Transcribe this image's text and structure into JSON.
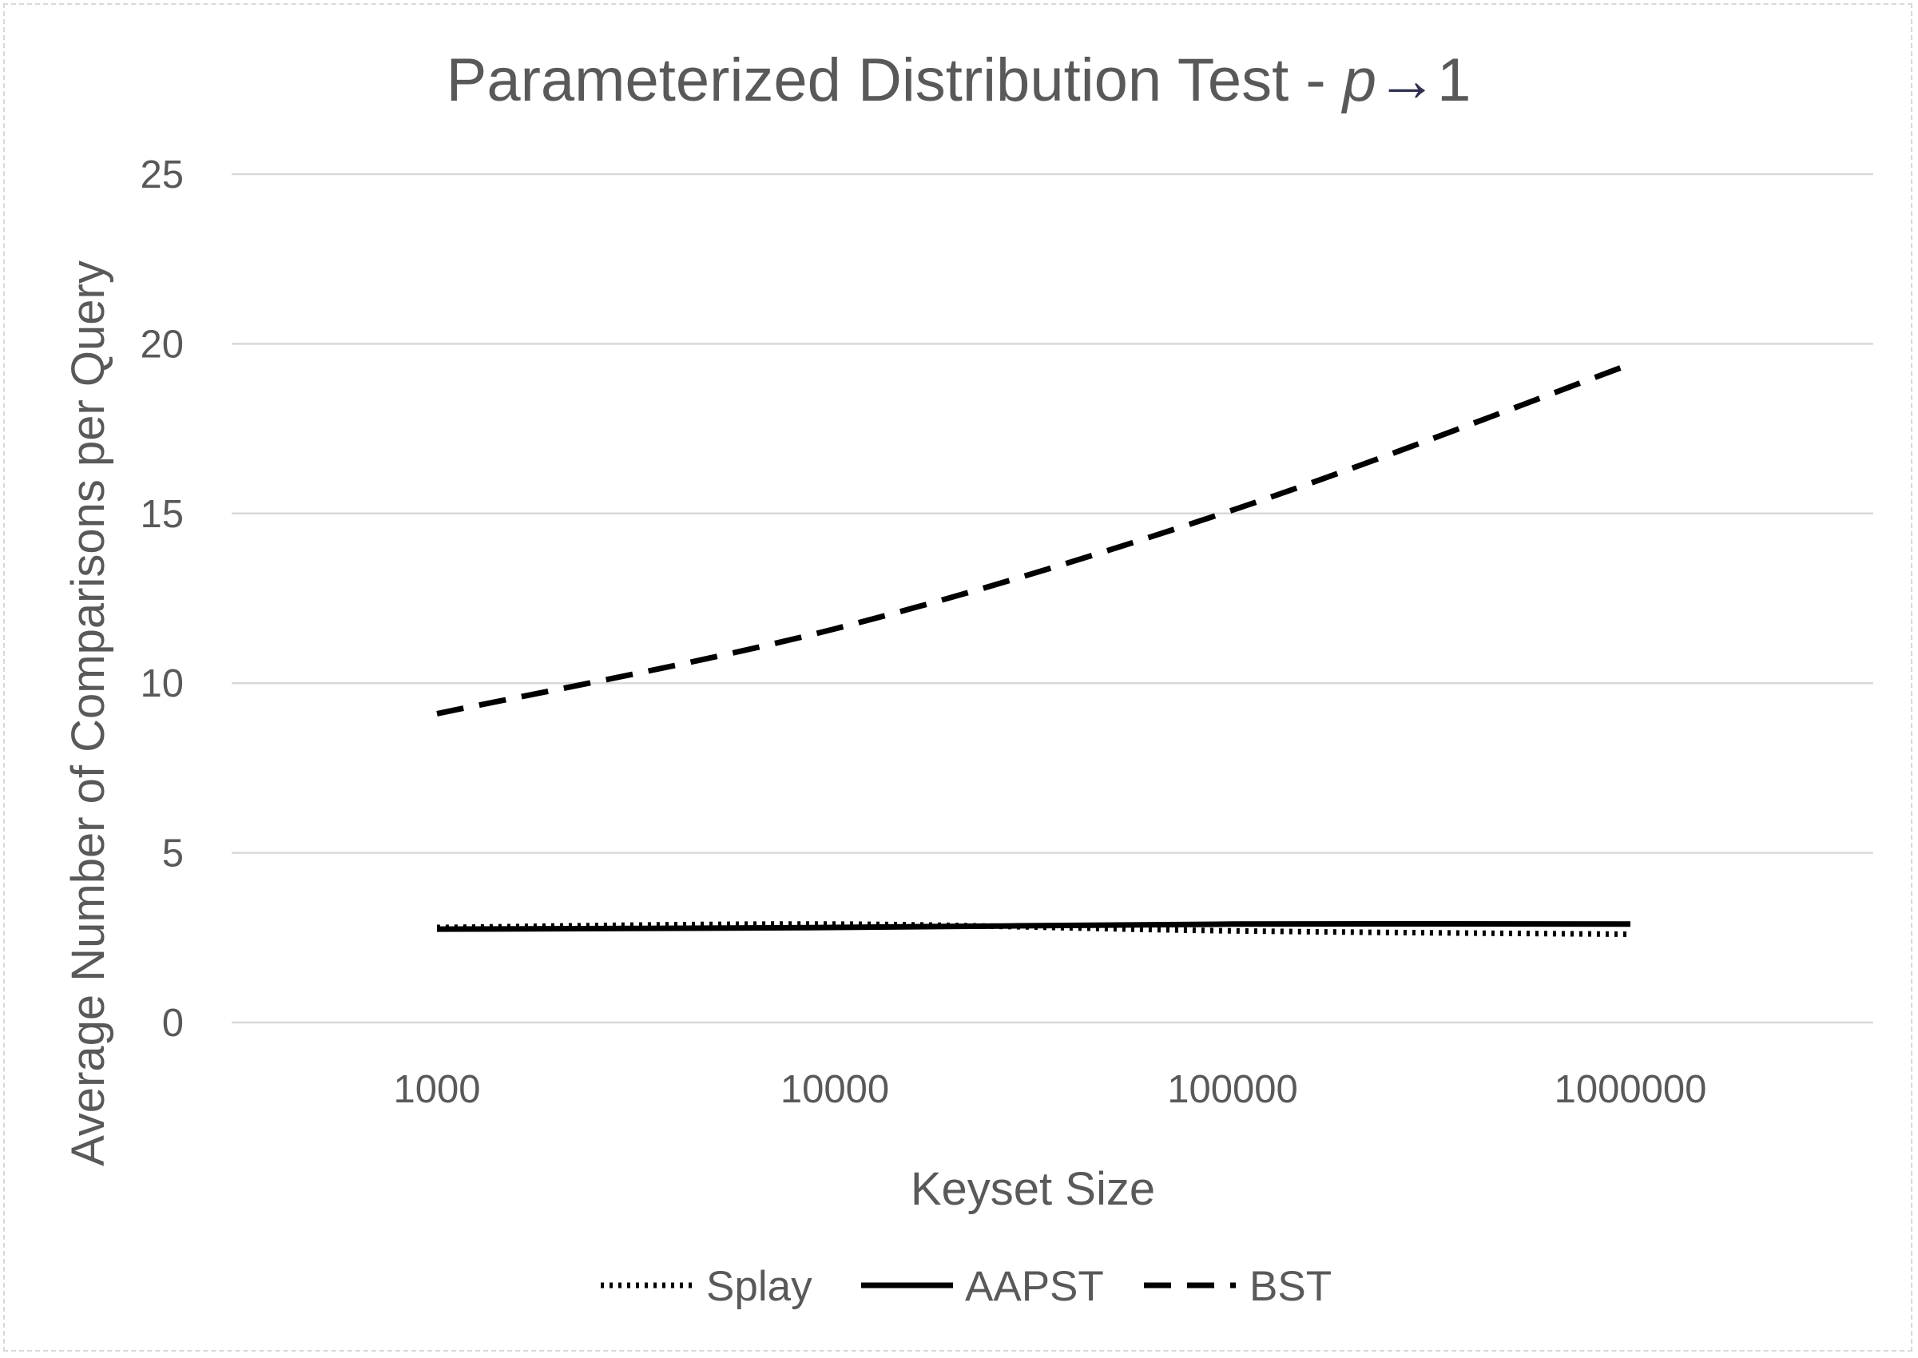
{
  "chart_data": {
    "type": "line",
    "title": "Parameterized Distribution Test - ",
    "title_symbol": "p",
    "title_arrow": "→",
    "title_end": "1",
    "xlabel": "Keyset Size",
    "ylabel": "Average Number of Comparisons per Query",
    "x_scale": "log",
    "x": [
      1000,
      10000,
      100000,
      1000000
    ],
    "x_tick_labels": [
      "1000",
      "10000",
      "100000",
      "1000000"
    ],
    "ylim": [
      0,
      25
    ],
    "y_ticks": [
      0,
      5,
      10,
      15,
      20,
      25
    ],
    "y_tick_labels": [
      "0",
      "5",
      "10",
      "15",
      "20",
      "25"
    ],
    "grid": true,
    "legend_position": "bottom",
    "series": [
      {
        "name": "Splay",
        "style": "dotted",
        "values": [
          2.8,
          2.9,
          2.7,
          2.6
        ]
      },
      {
        "name": "AAPST",
        "style": "solid",
        "values": [
          2.75,
          2.8,
          2.9,
          2.9
        ]
      },
      {
        "name": "BST",
        "style": "dashed",
        "values": [
          9.1,
          11.6,
          15.1,
          19.4
        ]
      }
    ],
    "colors": {
      "series": "#000000",
      "text": "#595959",
      "grid": "#d9d9d9"
    }
  }
}
